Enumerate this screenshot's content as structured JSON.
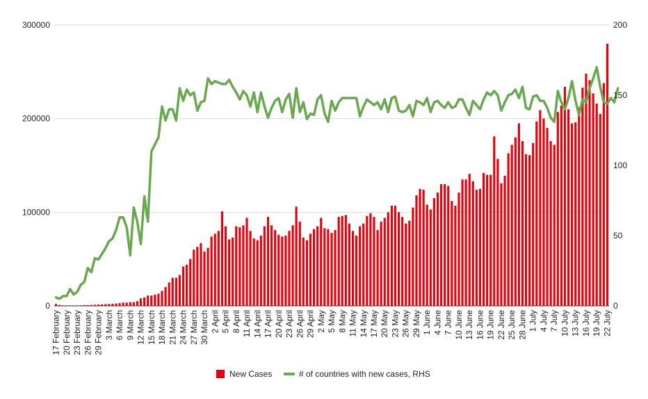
{
  "chart_data": {
    "type": "bar+line",
    "title": "",
    "xlabel": "",
    "ylabel": "",
    "y_left_lim": [
      0,
      300000
    ],
    "y_left_ticks": [
      "0",
      "100000",
      "200000",
      "300000"
    ],
    "y_right_lim": [
      0,
      200
    ],
    "y_right_ticks": [
      "0",
      "50",
      "100",
      "150",
      "200"
    ],
    "x_tick_labels": [
      "17 February",
      "20 February",
      "23 February",
      "26 February",
      "29 February",
      "3 March",
      "6 March",
      "9 March",
      "12 March",
      "15 March",
      "18 March",
      "21 March",
      "24 March",
      "27 March",
      "30 March",
      "2 April",
      "5 April",
      "8 April",
      "11 April",
      "14 April",
      "17 April",
      "20 April",
      "23 April",
      "26 April",
      "29 April",
      "2 May",
      "5 May",
      "8 May",
      "11 May",
      "14 May",
      "17 May",
      "20 May",
      "23 May",
      "26 May",
      "29 May",
      "1 June",
      "4 June",
      "7 June",
      "10 June",
      "13 June",
      "16 June",
      "19 June",
      "22 June",
      "25 June",
      "28 June",
      "1 July",
      "4 July",
      "7 July",
      "10 July",
      "13 July",
      "16 July",
      "19 July",
      "22 July"
    ],
    "grid": "horizontal",
    "legend_position": "bottom",
    "colors": {
      "bars": "#e8000b",
      "line": "#6aa84f",
      "grid": "#d9d9d9",
      "text": "#222222"
    },
    "series": [
      {
        "name": "New Cases",
        "type": "bar",
        "axis": "left",
        "values": [
          2000,
          1000,
          500,
          500,
          500,
          500,
          500,
          500,
          800,
          800,
          1000,
          1200,
          1400,
          1600,
          1800,
          2000,
          2200,
          2500,
          3000,
          3500,
          3500,
          4000,
          4000,
          5000,
          8000,
          9000,
          11000,
          11000,
          12000,
          13000,
          16000,
          20000,
          25000,
          30000,
          30000,
          33000,
          42000,
          44000,
          50000,
          60000,
          63000,
          67000,
          58000,
          62000,
          74000,
          77000,
          80000,
          101000,
          85000,
          71000,
          73000,
          85000,
          84000,
          86000,
          94000,
          80000,
          72000,
          70000,
          75000,
          85000,
          95000,
          86000,
          81000,
          76000,
          74000,
          75000,
          80000,
          86000,
          106000,
          90000,
          73000,
          70000,
          77000,
          82000,
          85000,
          94000,
          83000,
          82000,
          78000,
          81000,
          95000,
          96000,
          97000,
          88000,
          80000,
          75000,
          85000,
          88000,
          96000,
          99000,
          95000,
          81000,
          90000,
          94000,
          100000,
          107000,
          107000,
          100000,
          95000,
          88000,
          91000,
          105000,
          118000,
          125000,
          124000,
          108000,
          103000,
          115000,
          121000,
          130000,
          130000,
          128000,
          112000,
          107000,
          121000,
          135000,
          135000,
          141000,
          133000,
          124000,
          125000,
          142000,
          140000,
          140000,
          181000,
          157000,
          131000,
          139000,
          163000,
          172000,
          180000,
          195000,
          176000,
          162000,
          161000,
          174000,
          197000,
          209000,
          200000,
          190000,
          176000,
          172000,
          207000,
          214000,
          234000,
          210000,
          195000,
          196000,
          212000,
          233000,
          248000,
          241000,
          227000,
          216000,
          205000,
          238000,
          280000
        ]
      },
      {
        "name": "# of countries with new cases, RHS",
        "type": "line",
        "axis": "right",
        "values": [
          6,
          5,
          7,
          7,
          12,
          8,
          10,
          15,
          17,
          27,
          24,
          34,
          33,
          37,
          41,
          46,
          48,
          54,
          63,
          63,
          56,
          36,
          70,
          60,
          44,
          78,
          60,
          110,
          115,
          120,
          142,
          132,
          140,
          140,
          132,
          155,
          146,
          154,
          150,
          152,
          139,
          145,
          146,
          162,
          158,
          160,
          159,
          158,
          158,
          161,
          156,
          152,
          147,
          153,
          150,
          142,
          152,
          138,
          152,
          142,
          134,
          141,
          146,
          148,
          138,
          147,
          151,
          134,
          155,
          138,
          145,
          133,
          137,
          136,
          147,
          150,
          137,
          131,
          146,
          139,
          145,
          148,
          148,
          148,
          148,
          148,
          135,
          142,
          147,
          145,
          143,
          145,
          140,
          147,
          138,
          148,
          149,
          139,
          138,
          139,
          143,
          135,
          146,
          145,
          143,
          148,
          138,
          145,
          146,
          143,
          141,
          145,
          141,
          142,
          147,
          147,
          141,
          136,
          146,
          143,
          140,
          147,
          152,
          150,
          153,
          150,
          139,
          145,
          150,
          151,
          154,
          148,
          156,
          141,
          140,
          149,
          150,
          146,
          146,
          141,
          134,
          131,
          153,
          145,
          140,
          148,
          160,
          146,
          136,
          147,
          145,
          155,
          162,
          170,
          156,
          145,
          144,
          148,
          145,
          155
        ]
      }
    ]
  }
}
